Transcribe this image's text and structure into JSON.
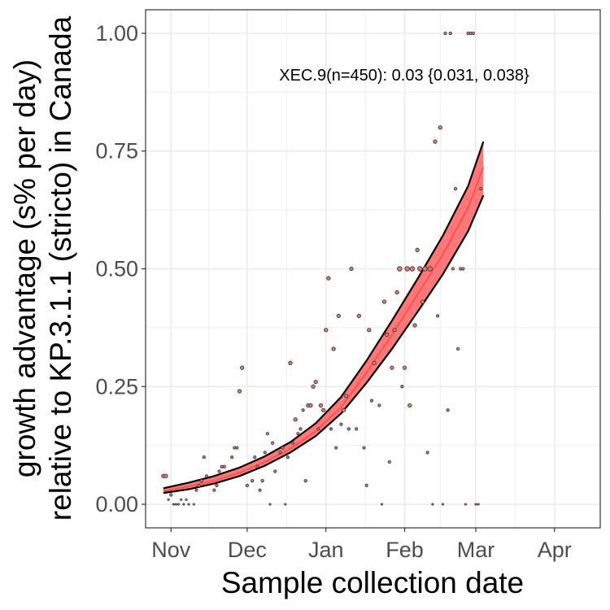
{
  "chart_data": {
    "type": "scatter",
    "xlabel": "Sample collection date",
    "ylabel_lines": [
      "growth advantage (s% per day)",
      "relative to KP.3.1.1 (stricto) in Canada"
    ],
    "annotation": "XEC.9(n=450): 0.03 {0.031, 0.038}",
    "x_ticks": [
      {
        "label": "Nov",
        "date": "2024-11-01"
      },
      {
        "label": "Dec",
        "date": "2024-12-01"
      },
      {
        "label": "Jan",
        "date": "2025-01-01"
      },
      {
        "label": "Feb",
        "date": "2025-02-01"
      },
      {
        "label": "Mar",
        "date": "2025-03-01"
      },
      {
        "label": "Apr",
        "date": "2025-04-01"
      }
    ],
    "y_ticks": [
      {
        "label": "0.00",
        "value": 0
      },
      {
        "label": "0.25",
        "value": 0.25
      },
      {
        "label": "0.50",
        "value": 0.5
      },
      {
        "label": "0.75",
        "value": 0.75
      },
      {
        "label": "1.00",
        "value": 1
      }
    ],
    "xlim": [
      "2024-10-22",
      "2025-04-19"
    ],
    "ylim": [
      -0.05,
      1.05
    ],
    "grid": true,
    "colors": {
      "fit_line": "#f8544f",
      "ribbon_fill": "#ff6b6b",
      "ribbon_edge": "#000000",
      "point_fill": "#e87878",
      "point_stroke": "#3a3a3a",
      "grid": "#ebebeb",
      "panel_border": "#333333"
    },
    "fit": {
      "date": [
        "2024-10-29",
        "2024-11-08",
        "2024-11-18",
        "2024-11-28",
        "2024-12-08",
        "2024-12-18",
        "2024-12-28",
        "2025-01-07",
        "2025-01-17",
        "2025-01-27",
        "2025-02-06",
        "2025-02-16",
        "2025-02-26",
        "2025-03-04"
      ],
      "mean": [
        0.028,
        0.038,
        0.05,
        0.067,
        0.09,
        0.118,
        0.155,
        0.206,
        0.28,
        0.36,
        0.445,
        0.53,
        0.63,
        0.716
      ],
      "lower": [
        0.024,
        0.032,
        0.044,
        0.06,
        0.082,
        0.11,
        0.145,
        0.193,
        0.258,
        0.33,
        0.408,
        0.488,
        0.58,
        0.656
      ],
      "upper": [
        0.034,
        0.046,
        0.06,
        0.078,
        0.102,
        0.132,
        0.172,
        0.228,
        0.305,
        0.39,
        0.478,
        0.57,
        0.676,
        0.77
      ]
    },
    "points": {
      "date": [
        "2024-10-29",
        "2024-10-30",
        "2024-10-31",
        "2024-11-01",
        "2024-11-02",
        "2024-11-03",
        "2024-11-04",
        "2024-11-05",
        "2024-11-06",
        "2024-11-07",
        "2024-11-08",
        "2024-11-10",
        "2024-11-11",
        "2024-11-12",
        "2024-11-13",
        "2024-11-14",
        "2024-11-15",
        "2024-11-18",
        "2024-11-19",
        "2024-11-20",
        "2024-11-21",
        "2024-11-22",
        "2024-11-25",
        "2024-11-26",
        "2024-11-27",
        "2024-11-28",
        "2024-11-29",
        "2024-12-01",
        "2024-12-03",
        "2024-12-04",
        "2024-12-05",
        "2024-12-06",
        "2024-12-07",
        "2024-12-08",
        "2024-12-09",
        "2024-12-10",
        "2024-12-11",
        "2024-12-12",
        "2024-12-14",
        "2024-12-15",
        "2024-12-16",
        "2024-12-17",
        "2024-12-18",
        "2024-12-19",
        "2024-12-20",
        "2024-12-21",
        "2024-12-22",
        "2024-12-23",
        "2024-12-24",
        "2024-12-25",
        "2024-12-26",
        "2024-12-27",
        "2024-12-28",
        "2024-12-29",
        "2024-12-30",
        "2024-12-31",
        "2025-01-01",
        "2025-01-02",
        "2025-01-03",
        "2025-01-04",
        "2025-01-05",
        "2025-01-06",
        "2025-01-07",
        "2025-01-08",
        "2025-01-09",
        "2025-01-10",
        "2025-01-11",
        "2025-01-13",
        "2025-01-14",
        "2025-01-16",
        "2025-01-17",
        "2025-01-18",
        "2025-01-19",
        "2025-01-20",
        "2025-01-22",
        "2025-01-23",
        "2025-01-24",
        "2025-01-25",
        "2025-01-26",
        "2025-01-27",
        "2025-01-28",
        "2025-01-29",
        "2025-01-30",
        "2025-01-31",
        "2025-02-01",
        "2025-02-02",
        "2025-02-03",
        "2025-02-04",
        "2025-02-05",
        "2025-02-06",
        "2025-02-07",
        "2025-02-08",
        "2025-02-09",
        "2025-02-10",
        "2025-02-11",
        "2025-02-12",
        "2025-02-13",
        "2025-02-14",
        "2025-02-15",
        "2025-02-16",
        "2025-02-17",
        "2025-02-18",
        "2025-02-19",
        "2025-02-20",
        "2025-02-21",
        "2025-02-22",
        "2025-02-23",
        "2025-02-24",
        "2025-02-25",
        "2025-02-26",
        "2025-02-27",
        "2025-02-28",
        "2025-03-01",
        "2025-03-02",
        "2025-03-03"
      ],
      "value": [
        0.06,
        0.06,
        0.01,
        0.02,
        0.0,
        0.0,
        0.0,
        0.01,
        0.0,
        0.01,
        0.0,
        0.0,
        0.03,
        0.04,
        0.05,
        0.1,
        0.06,
        0.03,
        0.04,
        0.07,
        0.08,
        0.08,
        0.1,
        0.12,
        0.12,
        0.24,
        0.29,
        0.04,
        0.05,
        0.1,
        0.08,
        0.03,
        0.05,
        0.11,
        0.15,
        0.0,
        0.13,
        0.07,
        0.11,
        0.12,
        0.0,
        0.1,
        0.3,
        0.13,
        0.18,
        0.15,
        0.16,
        0.2,
        0.05,
        0.21,
        0.21,
        0.25,
        0.26,
        0.16,
        0.21,
        0.2,
        0.37,
        0.48,
        0.16,
        0.33,
        0.12,
        0.4,
        0.17,
        0.2,
        0.23,
        0.16,
        0.5,
        0.16,
        0.4,
        0.12,
        0.04,
        0.37,
        0.22,
        0.3,
        0.21,
        0.0,
        0.43,
        0.36,
        0.09,
        0.29,
        0.37,
        0.45,
        0.5,
        0.25,
        0.29,
        0.5,
        0.21,
        0.5,
        0.38,
        0.54,
        0.5,
        0.43,
        0.5,
        0.11,
        0.5,
        0.0,
        0.77,
        0.4,
        0.8,
        0.0,
        1.0,
        0.2,
        1.0,
        0.5,
        0.67,
        0.33,
        0.5,
        0.5,
        0.0,
        1.0,
        1.0,
        1.0,
        0.0,
        0.0,
        0.67
      ],
      "size": [
        4,
        4,
        2,
        3,
        2,
        2,
        2,
        2,
        2,
        2,
        2,
        2,
        3,
        3,
        3,
        3,
        3,
        3,
        3,
        3,
        3,
        3,
        3,
        3,
        3,
        4,
        4,
        3,
        3,
        3,
        3,
        3,
        3,
        3,
        3,
        2,
        3,
        3,
        3,
        3,
        2,
        3,
        4,
        3,
        4,
        3,
        3,
        3,
        3,
        4,
        4,
        4,
        4,
        3,
        4,
        4,
        4,
        4,
        3,
        4,
        3,
        4,
        3,
        4,
        4,
        3,
        4,
        3,
        4,
        3,
        3,
        4,
        3,
        4,
        3,
        2,
        4,
        4,
        3,
        4,
        4,
        4,
        5,
        3,
        4,
        5,
        4,
        5,
        4,
        4,
        5,
        4,
        5,
        3,
        5,
        2,
        4,
        3,
        4,
        2,
        3,
        3,
        3,
        3,
        3,
        3,
        3,
        3,
        2,
        3,
        3,
        3,
        2,
        2,
        3
      ]
    }
  }
}
